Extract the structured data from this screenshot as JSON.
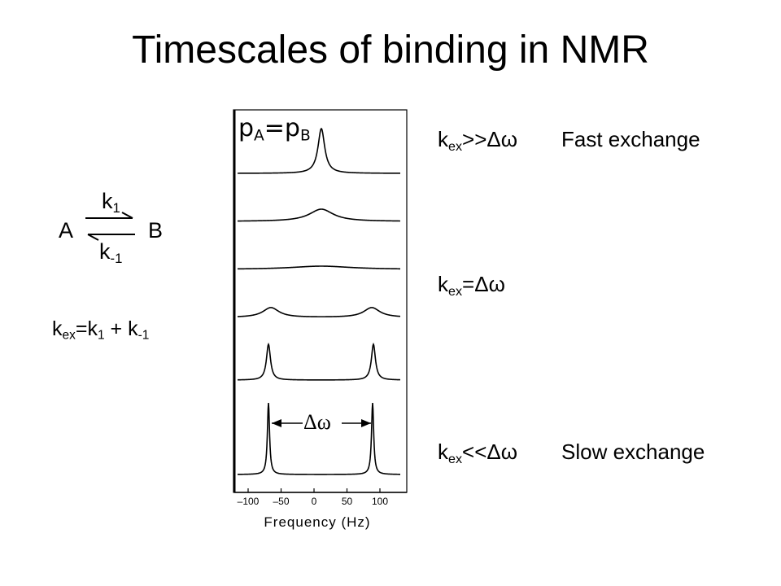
{
  "title": "Timescales of binding in NMR",
  "scheme": {
    "left": "A",
    "right": "B",
    "forward": {
      "main": "k",
      "sub": "1"
    },
    "reverse": {
      "main": "k",
      "sub": "-1"
    }
  },
  "kex_definition": [
    {
      "main": "k",
      "sub": "ex"
    },
    {
      "main": "=k",
      "sub": "1"
    },
    {
      "main": " + k",
      "sub": "-1"
    }
  ],
  "figure": {
    "populations": [
      {
        "main": "p",
        "sub": "A"
      },
      {
        "main": "=p",
        "sub": "B"
      }
    ],
    "delta_label": "Δω",
    "x_axis": {
      "ticks": [
        {
          "value": -100,
          "label": "–100"
        },
        {
          "value": -50,
          "label": "–50"
        },
        0,
        50,
        100
      ],
      "label": "Frequency (Hz)"
    }
  },
  "regimes": [
    {
      "kex": {
        "main": "k",
        "sub": "ex"
      },
      "relation": ">>Δω",
      "description": "Fast exchange"
    },
    {
      "kex": {
        "main": "k",
        "sub": "ex"
      },
      "relation": "=Δω"
    },
    {
      "kex": {
        "main": "k",
        "sub": "ex"
      },
      "relation": "<<Δω",
      "description": "Slow exchange"
    }
  ]
}
